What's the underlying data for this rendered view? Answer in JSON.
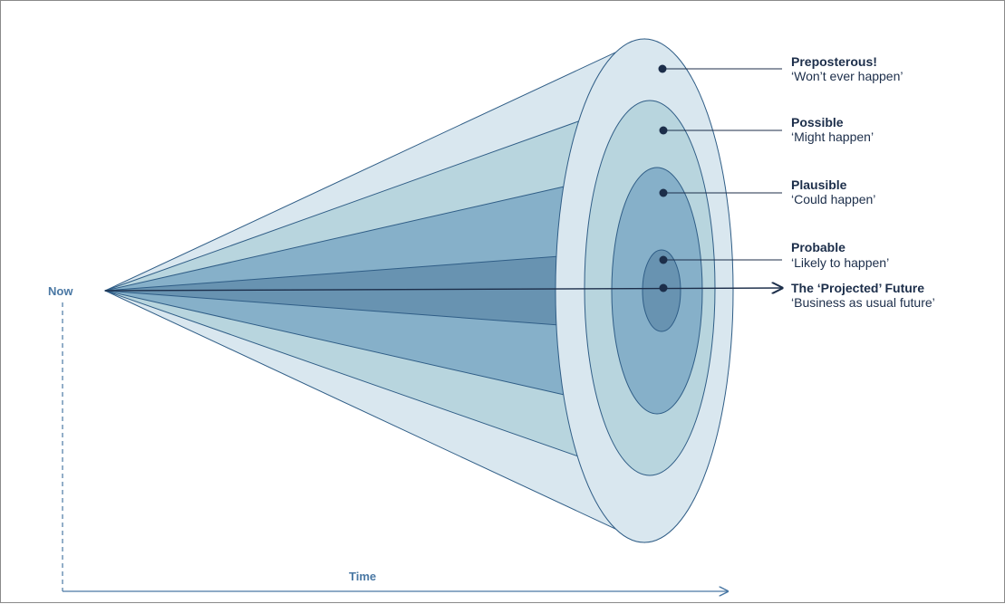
{
  "axis": {
    "now_label": "Now",
    "time_label": "Time",
    "color": "#4a78a4"
  },
  "colors": {
    "outline": "#2f5d86",
    "leader": "#1c2e4a",
    "text": "#1c2e4a",
    "layer_preposterous": "#d9e7ef",
    "layer_possible": "#b8d5de",
    "layer_plausible": "#86b0c9",
    "layer_probable": "#6893b1"
  },
  "futures": [
    {
      "id": "preposterous",
      "title": "Preposterous!",
      "subtitle": "‘Won’t ever happen’"
    },
    {
      "id": "possible",
      "title": "Possible",
      "subtitle": "‘Might happen’"
    },
    {
      "id": "plausible",
      "title": "Plausible",
      "subtitle": "‘Could happen’"
    },
    {
      "id": "probable",
      "title": "Probable",
      "subtitle": "‘Likely to happen’"
    },
    {
      "id": "projected",
      "title": "The ‘Projected’ Future",
      "subtitle": "‘Business as usual future’"
    }
  ]
}
